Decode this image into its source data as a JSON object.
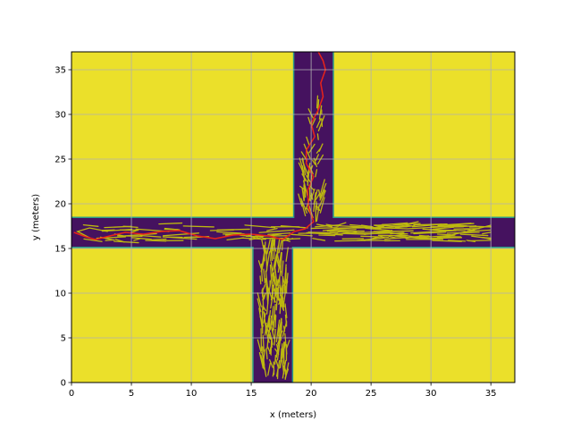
{
  "chart_data": {
    "type": "heatmap",
    "title": "",
    "xlabel": "x (meters)",
    "ylabel": "y (meters)",
    "xlim": [
      0,
      37
    ],
    "ylim": [
      0,
      37
    ],
    "xticks": [
      0,
      5,
      10,
      15,
      20,
      25,
      30,
      35
    ],
    "yticks": [
      0,
      5,
      10,
      15,
      20,
      25,
      30,
      35
    ],
    "grid": true,
    "colors": {
      "background": "#ebe02a",
      "corridor": "#45125f",
      "explored_tree": "#bdb80f",
      "path": "#e8231a",
      "grid": "#b0b0b0"
    },
    "map_regions": {
      "free_space_value": "corridor",
      "horizontal_corridor": {
        "x": [
          0,
          37
        ],
        "y": [
          15.2,
          18.4
        ]
      },
      "vertical_corridor_top": {
        "x": [
          18.6,
          21.8
        ],
        "y": [
          18.4,
          37
        ]
      },
      "vertical_corridor_bottom": {
        "x": [
          15.2,
          18.4
        ],
        "y": [
          0,
          15.2
        ]
      }
    },
    "series": [
      {
        "type": "line",
        "values_xy": [
          [
            0.2,
            16.8
          ],
          [
            1.2,
            16.3
          ],
          [
            2.0,
            16.0
          ],
          [
            3.5,
            16.5
          ],
          [
            4.5,
            16.8
          ],
          [
            6.0,
            16.6
          ],
          [
            7.5,
            16.9
          ],
          [
            9.0,
            17.0
          ],
          [
            10.5,
            16.4
          ],
          [
            12.0,
            16.1
          ],
          [
            13.5,
            16.5
          ],
          [
            15.0,
            16.6
          ],
          [
            16.5,
            16.4
          ],
          [
            17.6,
            16.0
          ],
          [
            18.6,
            16.9
          ],
          [
            19.5,
            17.2
          ],
          [
            20.2,
            18.0
          ],
          [
            19.8,
            19.5
          ],
          [
            19.7,
            21.5
          ],
          [
            20.2,
            23.0
          ],
          [
            19.6,
            24.5
          ],
          [
            19.6,
            26.0
          ],
          [
            20.3,
            27.5
          ],
          [
            20.0,
            29.0
          ],
          [
            20.6,
            30.5
          ],
          [
            21.0,
            32.0
          ],
          [
            20.8,
            33.5
          ],
          [
            21.2,
            35.0
          ],
          [
            21.0,
            36.0
          ],
          [
            20.6,
            37.0
          ]
        ]
      }
    ]
  }
}
